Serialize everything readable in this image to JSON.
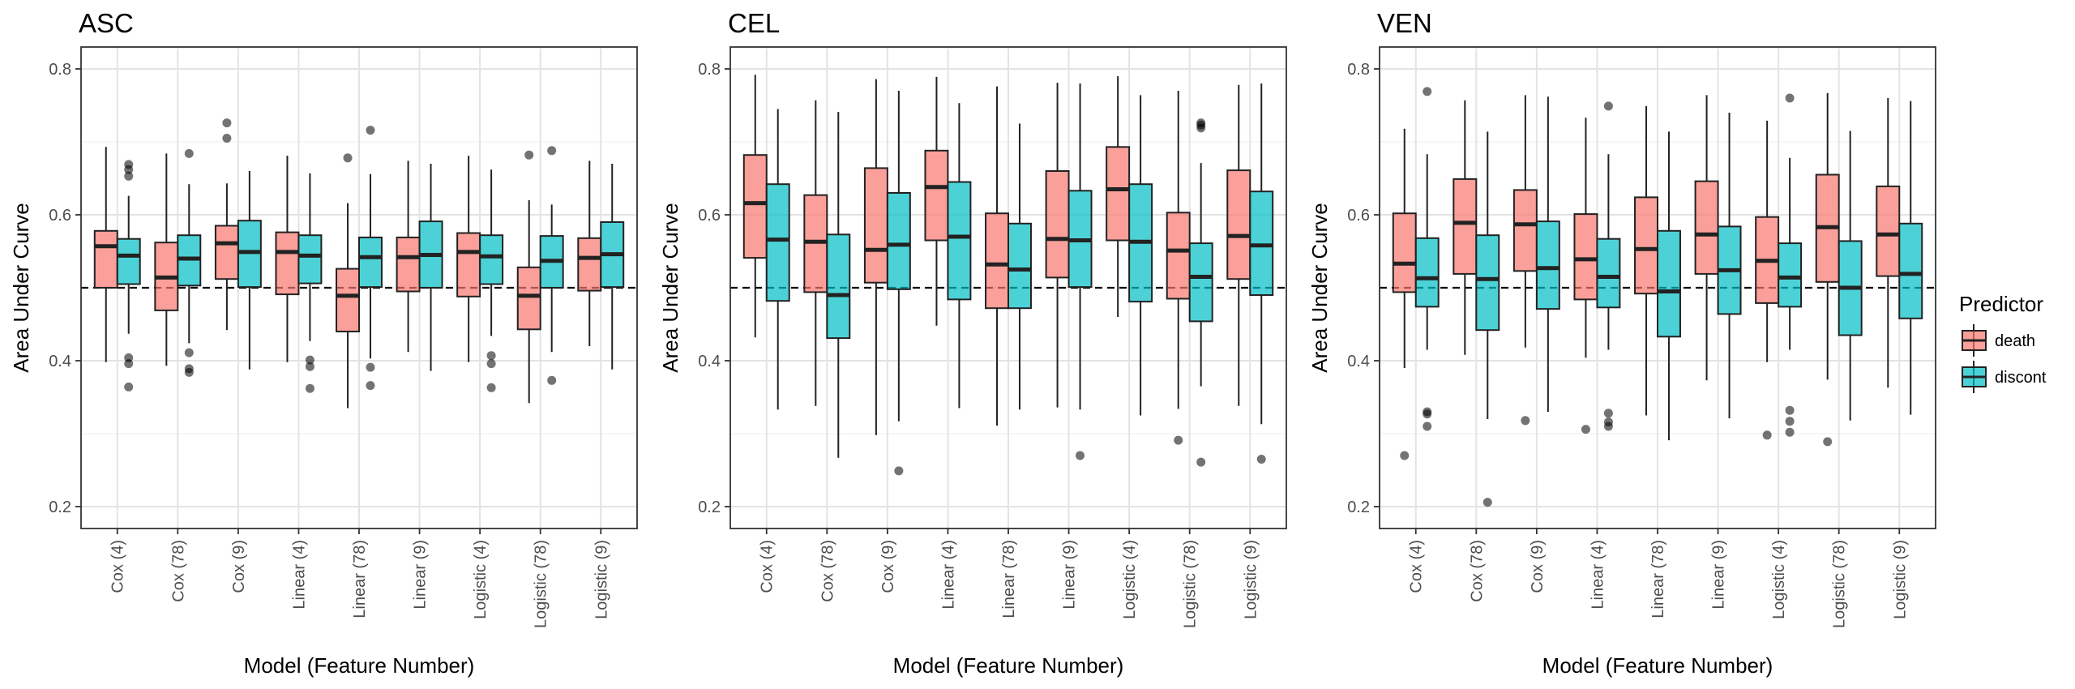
{
  "chart_data": [
    {
      "type": "boxplot",
      "title": "ASC",
      "xlabel": "Model (Feature Number)",
      "ylabel": "Area Under Curve",
      "ylim": [
        0.17,
        0.83
      ],
      "yticks": [
        "0.2",
        "0.4",
        "0.6",
        "0.8"
      ],
      "reference_line": 0.5,
      "categories": [
        "Cox (4)",
        "Cox (78)",
        "Cox (9)",
        "Linear (4)",
        "Linear (78)",
        "Linear (9)",
        "Logistic (4)",
        "Logistic (78)",
        "Logistic (9)"
      ],
      "series": [
        {
          "name": "death",
          "color": "#F8766D",
          "boxes": [
            {
              "min": 0.398,
              "q1": 0.5,
              "median": 0.557,
              "q3": 0.578,
              "max": 0.693,
              "outliers": []
            },
            {
              "min": 0.393,
              "q1": 0.469,
              "median": 0.514,
              "q3": 0.562,
              "max": 0.684,
              "outliers": []
            },
            {
              "min": 0.442,
              "q1": 0.512,
              "median": 0.561,
              "q3": 0.585,
              "max": 0.643,
              "outliers": [
                0.705,
                0.726
              ]
            },
            {
              "min": 0.398,
              "q1": 0.491,
              "median": 0.549,
              "q3": 0.576,
              "max": 0.681,
              "outliers": []
            },
            {
              "min": 0.335,
              "q1": 0.44,
              "median": 0.489,
              "q3": 0.526,
              "max": 0.616,
              "outliers": [
                0.678
              ]
            },
            {
              "min": 0.412,
              "q1": 0.495,
              "median": 0.542,
              "q3": 0.569,
              "max": 0.674,
              "outliers": []
            },
            {
              "min": 0.398,
              "q1": 0.488,
              "median": 0.549,
              "q3": 0.575,
              "max": 0.681,
              "outliers": []
            },
            {
              "min": 0.342,
              "q1": 0.443,
              "median": 0.489,
              "q3": 0.528,
              "max": 0.62,
              "outliers": [
                0.682
              ]
            },
            {
              "min": 0.42,
              "q1": 0.496,
              "median": 0.541,
              "q3": 0.568,
              "max": 0.674,
              "outliers": []
            }
          ]
        },
        {
          "name": "discont",
          "color": "#00BFC4",
          "boxes": [
            {
              "min": 0.437,
              "q1": 0.505,
              "median": 0.544,
              "q3": 0.567,
              "max": 0.626,
              "outliers": [
                0.364,
                0.396,
                0.404,
                0.653,
                0.662,
                0.669
              ]
            },
            {
              "min": 0.424,
              "q1": 0.503,
              "median": 0.54,
              "q3": 0.572,
              "max": 0.642,
              "outliers": [
                0.384,
                0.389,
                0.411,
                0.684
              ]
            },
            {
              "min": 0.388,
              "q1": 0.501,
              "median": 0.549,
              "q3": 0.592,
              "max": 0.66,
              "outliers": []
            },
            {
              "min": 0.427,
              "q1": 0.506,
              "median": 0.544,
              "q3": 0.572,
              "max": 0.657,
              "outliers": [
                0.362,
                0.392,
                0.401
              ]
            },
            {
              "min": 0.403,
              "q1": 0.501,
              "median": 0.542,
              "q3": 0.569,
              "max": 0.656,
              "outliers": [
                0.366,
                0.391,
                0.716
              ]
            },
            {
              "min": 0.386,
              "q1": 0.5,
              "median": 0.545,
              "q3": 0.591,
              "max": 0.67,
              "outliers": []
            },
            {
              "min": 0.434,
              "q1": 0.505,
              "median": 0.543,
              "q3": 0.572,
              "max": 0.662,
              "outliers": [
                0.363,
                0.396,
                0.407
              ]
            },
            {
              "min": 0.412,
              "q1": 0.5,
              "median": 0.537,
              "q3": 0.571,
              "max": 0.614,
              "outliers": [
                0.373,
                0.688
              ]
            },
            {
              "min": 0.388,
              "q1": 0.501,
              "median": 0.546,
              "q3": 0.59,
              "max": 0.67,
              "outliers": []
            }
          ]
        }
      ]
    },
    {
      "type": "boxplot",
      "title": "CEL",
      "xlabel": "Model (Feature Number)",
      "ylabel": "Area Under Curve",
      "ylim": [
        0.17,
        0.83
      ],
      "yticks": [
        "0.2",
        "0.4",
        "0.6",
        "0.8"
      ],
      "reference_line": 0.5,
      "categories": [
        "Cox (4)",
        "Cox (78)",
        "Cox (9)",
        "Linear (4)",
        "Linear (78)",
        "Linear (9)",
        "Logistic (4)",
        "Logistic (78)",
        "Logistic (9)"
      ],
      "series": [
        {
          "name": "death",
          "color": "#F8766D",
          "boxes": [
            {
              "min": 0.432,
              "q1": 0.541,
              "median": 0.616,
              "q3": 0.682,
              "max": 0.792,
              "outliers": []
            },
            {
              "min": 0.338,
              "q1": 0.494,
              "median": 0.563,
              "q3": 0.627,
              "max": 0.757,
              "outliers": []
            },
            {
              "min": 0.298,
              "q1": 0.507,
              "median": 0.552,
              "q3": 0.664,
              "max": 0.786,
              "outliers": []
            },
            {
              "min": 0.448,
              "q1": 0.565,
              "median": 0.638,
              "q3": 0.688,
              "max": 0.789,
              "outliers": []
            },
            {
              "min": 0.311,
              "q1": 0.472,
              "median": 0.532,
              "q3": 0.602,
              "max": 0.776,
              "outliers": []
            },
            {
              "min": 0.336,
              "q1": 0.514,
              "median": 0.567,
              "q3": 0.66,
              "max": 0.781,
              "outliers": []
            },
            {
              "min": 0.46,
              "q1": 0.565,
              "median": 0.635,
              "q3": 0.693,
              "max": 0.79,
              "outliers": []
            },
            {
              "min": 0.334,
              "q1": 0.485,
              "median": 0.551,
              "q3": 0.603,
              "max": 0.77,
              "outliers": [
                0.291
              ]
            },
            {
              "min": 0.338,
              "q1": 0.512,
              "median": 0.571,
              "q3": 0.661,
              "max": 0.778,
              "outliers": []
            }
          ]
        },
        {
          "name": "discont",
          "color": "#00BFC4",
          "boxes": [
            {
              "min": 0.333,
              "q1": 0.482,
              "median": 0.566,
              "q3": 0.642,
              "max": 0.745,
              "outliers": []
            },
            {
              "min": 0.267,
              "q1": 0.431,
              "median": 0.49,
              "q3": 0.573,
              "max": 0.741,
              "outliers": []
            },
            {
              "min": 0.317,
              "q1": 0.498,
              "median": 0.559,
              "q3": 0.63,
              "max": 0.77,
              "outliers": [
                0.249
              ]
            },
            {
              "min": 0.335,
              "q1": 0.484,
              "median": 0.57,
              "q3": 0.645,
              "max": 0.753,
              "outliers": []
            },
            {
              "min": 0.333,
              "q1": 0.472,
              "median": 0.525,
              "q3": 0.588,
              "max": 0.725,
              "outliers": []
            },
            {
              "min": 0.333,
              "q1": 0.501,
              "median": 0.565,
              "q3": 0.633,
              "max": 0.78,
              "outliers": [
                0.27
              ]
            },
            {
              "min": 0.325,
              "q1": 0.481,
              "median": 0.563,
              "q3": 0.642,
              "max": 0.764,
              "outliers": []
            },
            {
              "min": 0.365,
              "q1": 0.454,
              "median": 0.515,
              "q3": 0.561,
              "max": 0.671,
              "outliers": [
                0.261,
                0.719,
                0.723,
                0.726
              ]
            },
            {
              "min": 0.313,
              "q1": 0.49,
              "median": 0.558,
              "q3": 0.632,
              "max": 0.78,
              "outliers": [
                0.265
              ]
            }
          ]
        }
      ]
    },
    {
      "type": "boxplot",
      "title": "VEN",
      "xlabel": "Model (Feature Number)",
      "ylabel": "Area Under Curve",
      "ylim": [
        0.17,
        0.83
      ],
      "yticks": [
        "0.2",
        "0.4",
        "0.6",
        "0.8"
      ],
      "reference_line": 0.5,
      "legend": {
        "title": "Predictor",
        "position": "right"
      },
      "categories": [
        "Cox (4)",
        "Cox (78)",
        "Cox (9)",
        "Linear (4)",
        "Linear (78)",
        "Linear (9)",
        "Logistic (4)",
        "Logistic (78)",
        "Logistic (9)"
      ],
      "series": [
        {
          "name": "death",
          "color": "#F8766D",
          "boxes": [
            {
              "min": 0.39,
              "q1": 0.494,
              "median": 0.533,
              "q3": 0.602,
              "max": 0.718,
              "outliers": [
                0.27
              ]
            },
            {
              "min": 0.408,
              "q1": 0.519,
              "median": 0.589,
              "q3": 0.649,
              "max": 0.757,
              "outliers": []
            },
            {
              "min": 0.418,
              "q1": 0.523,
              "median": 0.587,
              "q3": 0.634,
              "max": 0.764,
              "outliers": [
                0.318
              ]
            },
            {
              "min": 0.404,
              "q1": 0.484,
              "median": 0.539,
              "q3": 0.601,
              "max": 0.733,
              "outliers": [
                0.306
              ]
            },
            {
              "min": 0.325,
              "q1": 0.492,
              "median": 0.553,
              "q3": 0.624,
              "max": 0.749,
              "outliers": []
            },
            {
              "min": 0.373,
              "q1": 0.519,
              "median": 0.573,
              "q3": 0.646,
              "max": 0.764,
              "outliers": []
            },
            {
              "min": 0.398,
              "q1": 0.479,
              "median": 0.537,
              "q3": 0.597,
              "max": 0.729,
              "outliers": [
                0.298
              ]
            },
            {
              "min": 0.374,
              "q1": 0.508,
              "median": 0.583,
              "q3": 0.655,
              "max": 0.767,
              "outliers": [
                0.289
              ]
            },
            {
              "min": 0.363,
              "q1": 0.516,
              "median": 0.573,
              "q3": 0.639,
              "max": 0.76,
              "outliers": []
            }
          ]
        },
        {
          "name": "discont",
          "color": "#00BFC4",
          "boxes": [
            {
              "min": 0.415,
              "q1": 0.474,
              "median": 0.513,
              "q3": 0.568,
              "max": 0.683,
              "outliers": [
                0.31,
                0.327,
                0.33,
                0.769
              ]
            },
            {
              "min": 0.32,
              "q1": 0.442,
              "median": 0.512,
              "q3": 0.572,
              "max": 0.714,
              "outliers": [
                0.206
              ]
            },
            {
              "min": 0.33,
              "q1": 0.471,
              "median": 0.527,
              "q3": 0.591,
              "max": 0.762,
              "outliers": []
            },
            {
              "min": 0.415,
              "q1": 0.473,
              "median": 0.515,
              "q3": 0.567,
              "max": 0.683,
              "outliers": [
                0.31,
                0.316,
                0.328,
                0.749
              ]
            },
            {
              "min": 0.291,
              "q1": 0.433,
              "median": 0.495,
              "q3": 0.578,
              "max": 0.714,
              "outliers": []
            },
            {
              "min": 0.321,
              "q1": 0.464,
              "median": 0.524,
              "q3": 0.584,
              "max": 0.74,
              "outliers": []
            },
            {
              "min": 0.415,
              "q1": 0.474,
              "median": 0.514,
              "q3": 0.561,
              "max": 0.678,
              "outliers": [
                0.302,
                0.317,
                0.332,
                0.76
              ]
            },
            {
              "min": 0.318,
              "q1": 0.435,
              "median": 0.5,
              "q3": 0.564,
              "max": 0.715,
              "outliers": []
            },
            {
              "min": 0.326,
              "q1": 0.458,
              "median": 0.519,
              "q3": 0.588,
              "max": 0.756,
              "outliers": []
            }
          ]
        }
      ]
    }
  ]
}
